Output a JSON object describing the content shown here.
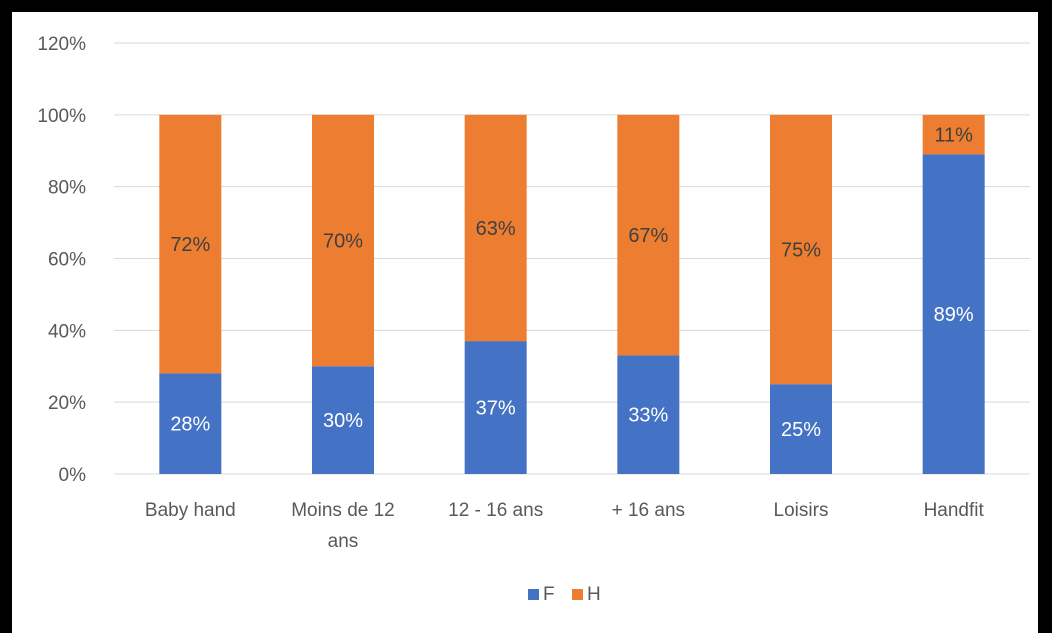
{
  "chart_data": {
    "type": "bar",
    "stacked": true,
    "title": "",
    "xlabel": "",
    "ylabel": "",
    "ylim": [
      0,
      1.2
    ],
    "y_ticks": [
      "0%",
      "20%",
      "40%",
      "60%",
      "80%",
      "100%",
      "120%"
    ],
    "grid": true,
    "legend_position": "bottom",
    "categories": [
      [
        "Baby hand"
      ],
      [
        "Moins de 12",
        "ans"
      ],
      [
        "12 - 16 ans"
      ],
      [
        "+ 16 ans"
      ],
      [
        "Loisirs"
      ],
      [
        "Handfit"
      ]
    ],
    "series": [
      {
        "name": "F",
        "color": "#4472c4",
        "label_color": "#ffffff",
        "values": [
          0.28,
          0.3,
          0.37,
          0.33,
          0.25,
          0.89
        ],
        "labels": [
          "28%",
          "30%",
          "37%",
          "33%",
          "25%",
          "89%"
        ]
      },
      {
        "name": "H",
        "color": "#ed7d31",
        "label_color": "#404040",
        "values": [
          0.72,
          0.7,
          0.63,
          0.67,
          0.75,
          0.11
        ],
        "labels": [
          "72%",
          "70%",
          "63%",
          "67%",
          "75%",
          "11%"
        ]
      }
    ]
  }
}
